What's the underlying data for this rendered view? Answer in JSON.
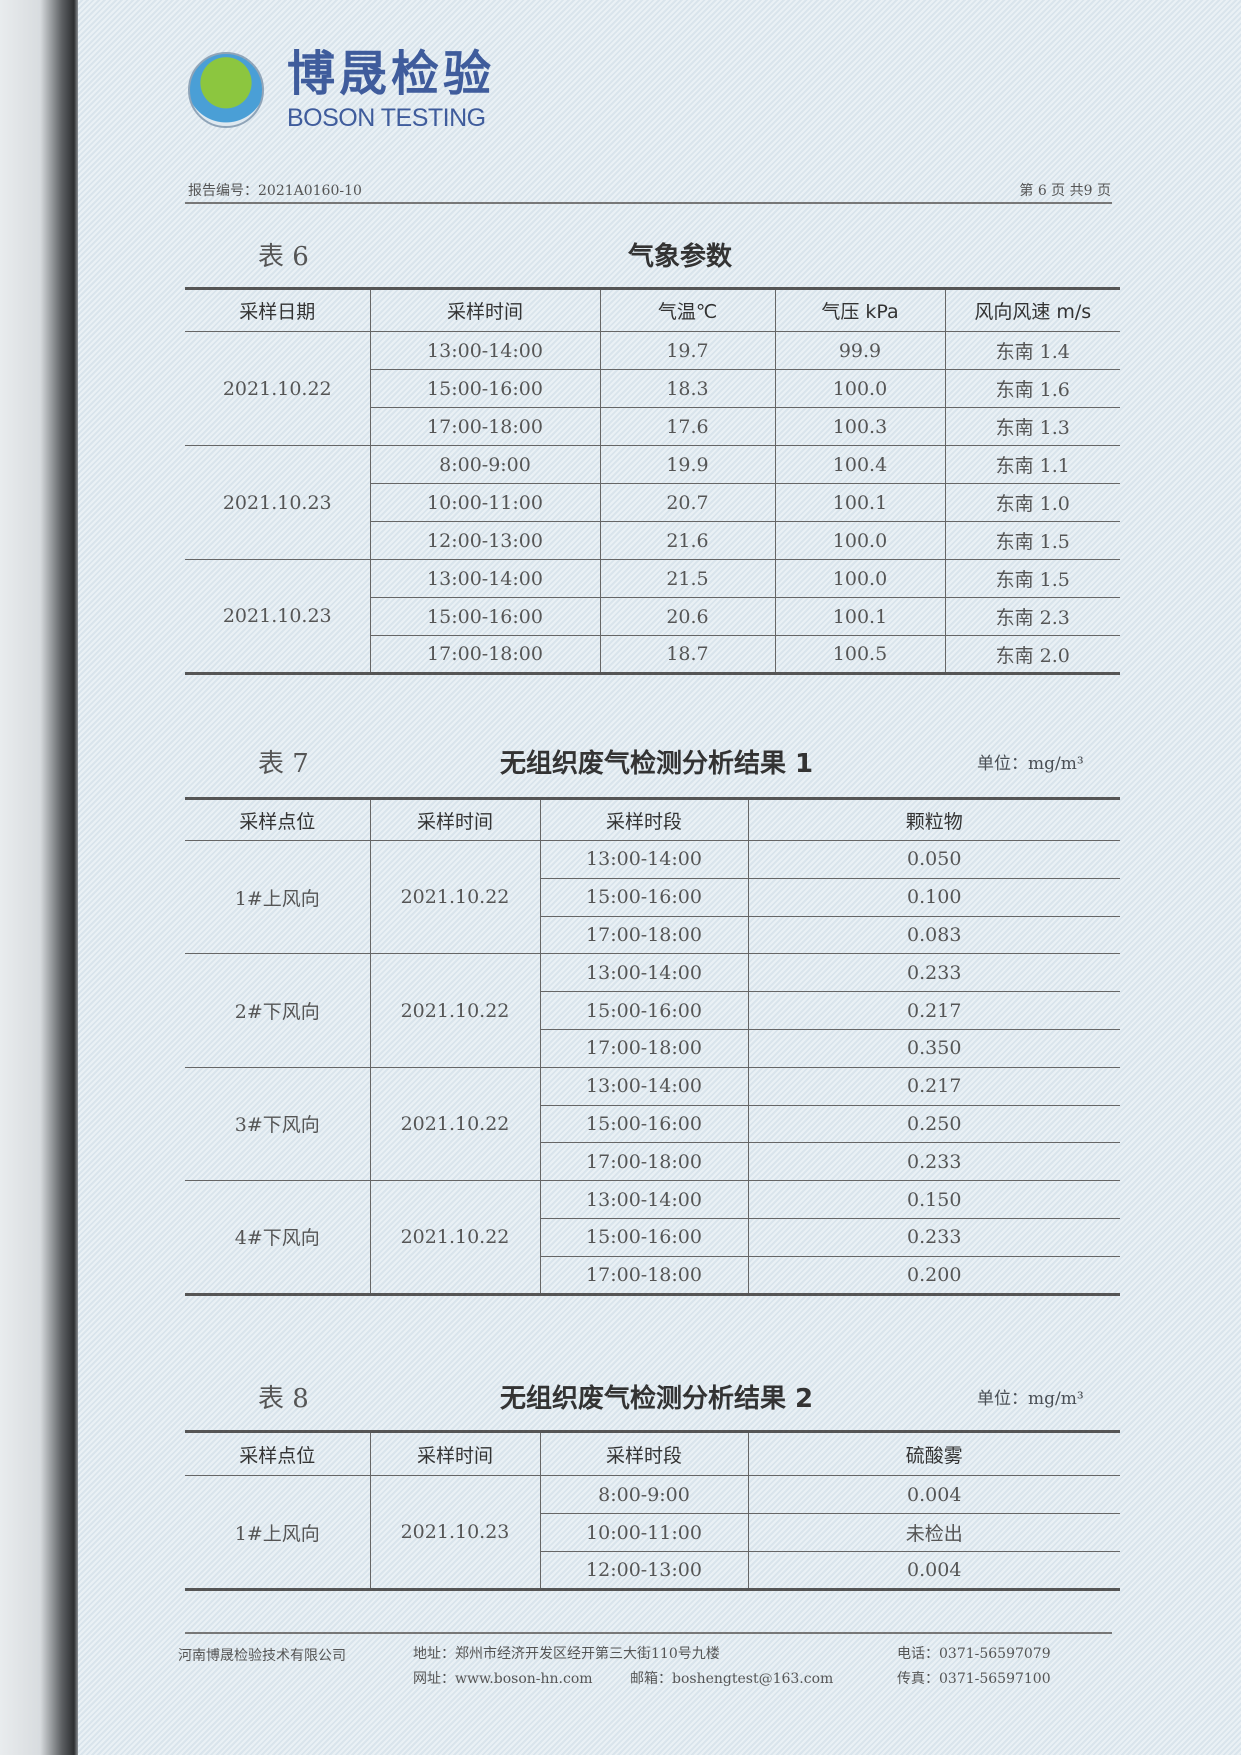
{
  "logo": {
    "cn": "博晟检验",
    "en": "BOSON TESTING"
  },
  "header": {
    "report_no": "报告编号：2021A0160-10",
    "page": "第 6 页 共9 页"
  },
  "table6": {
    "label": "表 6",
    "title": "气象参数",
    "headers": [
      "采样日期",
      "采样时间",
      "气温℃",
      "气压 kPa",
      "风向风速 m/s"
    ],
    "groups": [
      {
        "key": "2021.10.22",
        "rows": [
          [
            "13:00-14:00",
            "19.7",
            "99.9",
            "东南 1.4"
          ],
          [
            "15:00-16:00",
            "18.3",
            "100.0",
            "东南 1.6"
          ],
          [
            "17:00-18:00",
            "17.6",
            "100.3",
            "东南 1.3"
          ]
        ]
      },
      {
        "key": "2021.10.23",
        "rows": [
          [
            "8:00-9:00",
            "19.9",
            "100.4",
            "东南 1.1"
          ],
          [
            "10:00-11:00",
            "20.7",
            "100.1",
            "东南 1.0"
          ],
          [
            "12:00-13:00",
            "21.6",
            "100.0",
            "东南 1.5"
          ]
        ]
      },
      {
        "key": "2021.10.23",
        "rows": [
          [
            "13:00-14:00",
            "21.5",
            "100.0",
            "东南 1.5"
          ],
          [
            "15:00-16:00",
            "20.6",
            "100.1",
            "东南 2.3"
          ],
          [
            "17:00-18:00",
            "18.7",
            "100.5",
            "东南 2.0"
          ]
        ]
      }
    ]
  },
  "table7": {
    "label": "表 7",
    "title": "无组织废气检测分析结果 1",
    "unit": "单位：mg/m³",
    "headers": [
      "采样点位",
      "采样时间",
      "采样时段",
      "颗粒物"
    ],
    "groups": [
      {
        "key": "1#上风向",
        "date": "2021.10.22",
        "rows": [
          [
            "13:00-14:00",
            "0.050"
          ],
          [
            "15:00-16:00",
            "0.100"
          ],
          [
            "17:00-18:00",
            "0.083"
          ]
        ]
      },
      {
        "key": "2#下风向",
        "date": "2021.10.22",
        "rows": [
          [
            "13:00-14:00",
            "0.233"
          ],
          [
            "15:00-16:00",
            "0.217"
          ],
          [
            "17:00-18:00",
            "0.350"
          ]
        ]
      },
      {
        "key": "3#下风向",
        "date": "2021.10.22",
        "rows": [
          [
            "13:00-14:00",
            "0.217"
          ],
          [
            "15:00-16:00",
            "0.250"
          ],
          [
            "17:00-18:00",
            "0.233"
          ]
        ]
      },
      {
        "key": "4#下风向",
        "date": "2021.10.22",
        "rows": [
          [
            "13:00-14:00",
            "0.150"
          ],
          [
            "15:00-16:00",
            "0.233"
          ],
          [
            "17:00-18:00",
            "0.200"
          ]
        ]
      }
    ]
  },
  "table8": {
    "label": "表 8",
    "title": "无组织废气检测分析结果 2",
    "unit": "单位：mg/m³",
    "headers": [
      "采样点位",
      "采样时间",
      "采样时段",
      "硫酸雾"
    ],
    "groups": [
      {
        "key": "1#上风向",
        "date": "2021.10.23",
        "rows": [
          [
            "8:00-9:00",
            "0.004"
          ],
          [
            "10:00-11:00",
            "未检出"
          ],
          [
            "12:00-13:00",
            "0.004"
          ]
        ]
      }
    ]
  },
  "footer": {
    "company": "河南博晟检验技术有限公司",
    "address": "地址：郑州市经济开发区经开第三大街110号九楼",
    "phone": "电话：0371-56597079",
    "website": "网址：www.boson-hn.com",
    "email": "邮箱：boshengtest@163.com",
    "fax": "传真：0371-56597100"
  }
}
